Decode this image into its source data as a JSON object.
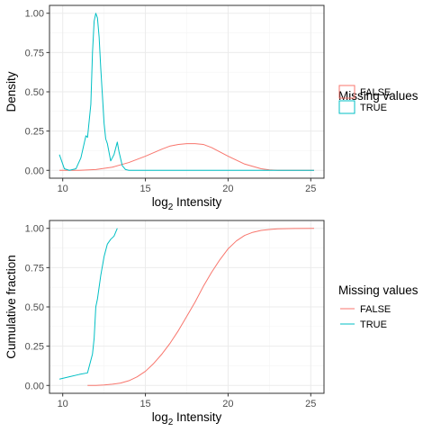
{
  "colors": {
    "FALSE": "#F8766D",
    "TRUE": "#00BFC4"
  },
  "chart_data": [
    {
      "type": "density",
      "xlabel_main": "log",
      "xlabel_sub": "2",
      "xlabel_rest": " Intensity",
      "ylabel": "Density",
      "xlim": [
        9.2,
        25.8
      ],
      "ylim": [
        -0.05,
        1.05
      ],
      "x_ticks": [
        10,
        15,
        20,
        25
      ],
      "y_ticks": [
        0.0,
        0.25,
        0.5,
        0.75,
        1.0
      ],
      "y_tick_labels": [
        "0.00",
        "0.25",
        "0.50",
        "0.75",
        "1.00"
      ],
      "grid": true,
      "legend": {
        "title": "Missing values",
        "position": "right",
        "key": "fill-box",
        "entries": [
          {
            "label": "FALSE",
            "color": "#F8766D"
          },
          {
            "label": "TRUE",
            "color": "#00BFC4"
          }
        ]
      },
      "series": [
        {
          "name": "FALSE",
          "color": "#F8766D",
          "x": [
            9.8,
            11.0,
            12.0,
            13.0,
            14.0,
            15.0,
            16.0,
            16.5,
            17.0,
            17.5,
            18.0,
            18.5,
            19.0,
            20.0,
            21.0,
            22.0,
            22.5,
            23.0,
            24.0,
            25.2
          ],
          "y": [
            0.0,
            0.0,
            0.005,
            0.02,
            0.05,
            0.09,
            0.135,
            0.155,
            0.165,
            0.17,
            0.17,
            0.165,
            0.145,
            0.09,
            0.04,
            0.01,
            0.003,
            0.0,
            0.0,
            0.0
          ]
        },
        {
          "name": "TRUE",
          "color": "#00BFC4",
          "x": [
            9.8,
            10.1,
            10.4,
            10.8,
            11.1,
            11.4,
            11.5,
            11.7,
            11.8,
            11.9,
            12.0,
            12.1,
            12.2,
            12.3,
            12.5,
            12.6,
            12.7,
            12.9,
            13.1,
            13.3,
            13.4,
            13.6,
            13.8,
            14.0,
            15.0,
            25.2
          ],
          "y": [
            0.1,
            0.01,
            0.0,
            0.01,
            0.08,
            0.22,
            0.21,
            0.42,
            0.75,
            0.95,
            1.0,
            0.97,
            0.85,
            0.65,
            0.3,
            0.2,
            0.17,
            0.06,
            0.1,
            0.18,
            0.12,
            0.03,
            0.005,
            0.0,
            0.0,
            0.0
          ]
        }
      ]
    },
    {
      "type": "line",
      "xlabel_main": "log",
      "xlabel_sub": "2",
      "xlabel_rest": " Intensity",
      "ylabel": "Cumulative fraction",
      "xlim": [
        9.2,
        25.8
      ],
      "ylim": [
        -0.05,
        1.05
      ],
      "x_ticks": [
        10,
        15,
        20,
        25
      ],
      "y_ticks": [
        0.0,
        0.25,
        0.5,
        0.75,
        1.0
      ],
      "y_tick_labels": [
        "0.00",
        "0.25",
        "0.50",
        "0.75",
        "1.00"
      ],
      "grid": true,
      "legend": {
        "title": "Missing values",
        "position": "right",
        "key": "line",
        "entries": [
          {
            "label": "FALSE",
            "color": "#F8766D"
          },
          {
            "label": "TRUE",
            "color": "#00BFC4"
          }
        ]
      },
      "series": [
        {
          "name": "FALSE",
          "color": "#F8766D",
          "x": [
            11.5,
            12.0,
            12.5,
            13.0,
            13.5,
            14.0,
            14.5,
            15.0,
            15.5,
            16.0,
            16.5,
            17.0,
            17.5,
            18.0,
            18.5,
            19.0,
            19.5,
            20.0,
            20.5,
            21.0,
            21.5,
            22.0,
            22.5,
            23.0,
            24.0,
            25.2
          ],
          "y": [
            0.0,
            0.0,
            0.003,
            0.008,
            0.015,
            0.03,
            0.055,
            0.09,
            0.14,
            0.2,
            0.27,
            0.35,
            0.44,
            0.53,
            0.63,
            0.72,
            0.8,
            0.87,
            0.92,
            0.955,
            0.975,
            0.987,
            0.993,
            0.997,
            0.999,
            1.0
          ]
        },
        {
          "name": "TRUE",
          "color": "#00BFC4",
          "x": [
            9.8,
            10.4,
            11.0,
            11.5,
            11.8,
            11.9,
            12.0,
            12.1,
            12.3,
            12.5,
            12.7,
            12.9,
            13.1,
            13.3
          ],
          "y": [
            0.04,
            0.055,
            0.07,
            0.08,
            0.2,
            0.3,
            0.5,
            0.55,
            0.7,
            0.82,
            0.9,
            0.93,
            0.95,
            1.0
          ]
        }
      ]
    }
  ]
}
